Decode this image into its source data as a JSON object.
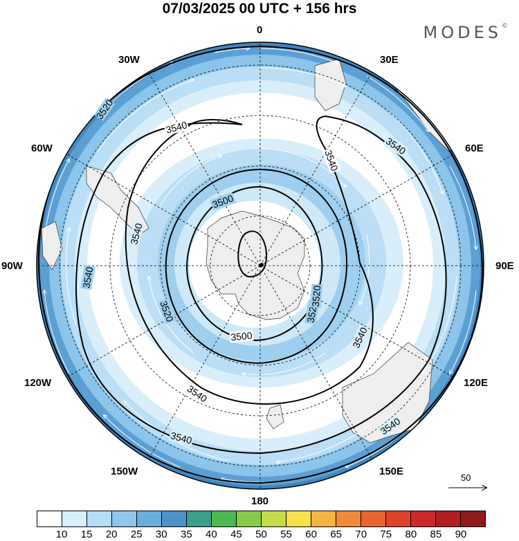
{
  "header": {
    "title": "07/03/2025  00 UTC  + 156 hrs",
    "brand": "MODES",
    "brand_mark": "©"
  },
  "map": {
    "projection": "south-polar-stereographic",
    "longitude_labels": {
      "top": "0",
      "top_left_30": "30W",
      "top_right_30": "30E",
      "left_upper_60": "60W",
      "right_upper_60": "60E",
      "left": "90W",
      "right": "90E",
      "left_lower_120": "120W",
      "right_lower_120": "120E",
      "bottom_left_150": "150W",
      "bottom_right_150": "150E",
      "bottom": "180"
    },
    "contour_labels": [
      "3520",
      "3540",
      "3540",
      "3540",
      "3540",
      "3500",
      "3540",
      "3540",
      "3520",
      "3520",
      "3520",
      "3500",
      "3540",
      "3540",
      "3540"
    ],
    "shading_colors": {
      "light": "#cde9f8",
      "mid": "#9ecfee",
      "strong": "#6fb3e1",
      "stronger": "#4f96cf",
      "edge": "#3f86c2",
      "green": "#4c9a6c",
      "land": "#eeeeee"
    }
  },
  "vector_key": {
    "value": "50"
  },
  "colorbar": {
    "ticks": [
      "10",
      "15",
      "20",
      "25",
      "30",
      "35",
      "40",
      "45",
      "50",
      "55",
      "60",
      "65",
      "70",
      "75",
      "80",
      "85",
      "90"
    ],
    "colors": [
      "#ffffff",
      "#d6effc",
      "#b4def6",
      "#8dc7ed",
      "#6aaee0",
      "#4e93c8",
      "#3e9e8c",
      "#4fb852",
      "#86cc4b",
      "#c5dc4a",
      "#f8e04d",
      "#f6b445",
      "#f08a38",
      "#e96530",
      "#e0432b",
      "#cc2a2a",
      "#b01f22",
      "#8e1a1a"
    ]
  }
}
